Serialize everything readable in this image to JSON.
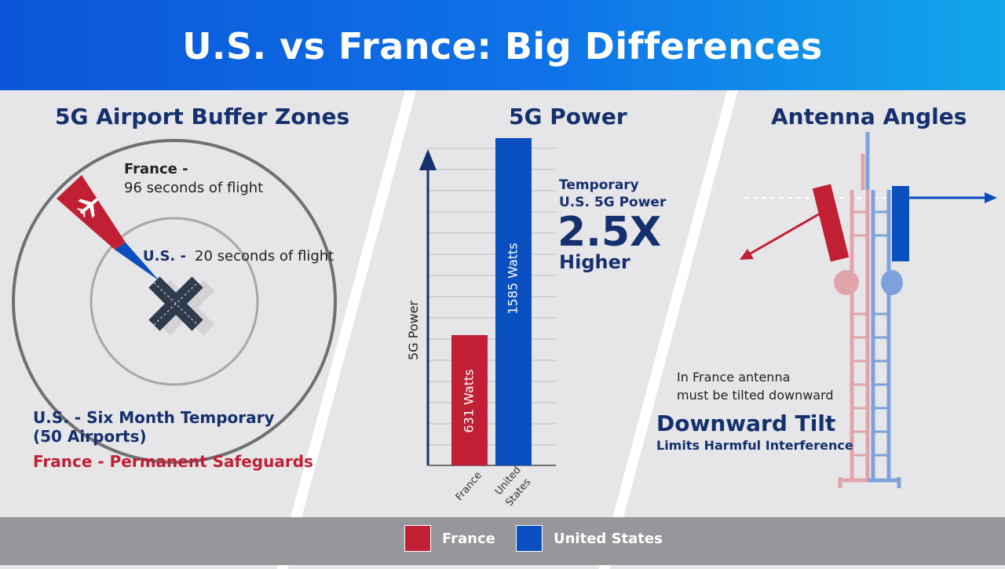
{
  "header": {
    "title": "U.S. vs France: Big Differences"
  },
  "colors": {
    "france": "#c11f33",
    "united_states": "#0a4fbf",
    "navy": "#15306e"
  },
  "buffer": {
    "title": "5G Airport Buffer Zones",
    "france_label": "France -",
    "france_sub": "96 seconds of flight",
    "us_label": "U.S. -",
    "us_sub": "20 seconds of flight",
    "us_policy_1": "U.S. - Six Month Temporary",
    "us_policy_2": "(50 Airports)",
    "france_policy": "France - Permanent Safeguards",
    "plane_icon": "airplane-icon",
    "runway_icon": "runway-icon"
  },
  "power": {
    "title": "5G Power",
    "callout_line1": "Temporary",
    "callout_line2": "U.S. 5G Power",
    "callout_big": "2.5X",
    "callout_line3": "Higher"
  },
  "chart_data": {
    "type": "bar",
    "title": "5G Power",
    "categories": [
      "France",
      "United States"
    ],
    "values": [
      631,
      1585
    ],
    "value_labels": [
      "631 Watts",
      "1585 Watts"
    ],
    "ylabel": "5G Power",
    "xlabel": "",
    "ylim": [
      0,
      1600
    ],
    "grid": true,
    "colors": [
      "#c11f33",
      "#0a4fbf"
    ]
  },
  "antenna": {
    "title": "Antenna Angles",
    "note_line1": "In France antenna",
    "note_line2": "must be tilted downward",
    "headline": "Downward Tilt",
    "subline": "Limits Harmful Interference",
    "tower_icon": "cell-tower-icon"
  },
  "legend": [
    {
      "label": "France",
      "color": "#c11f33"
    },
    {
      "label": "United States",
      "color": "#0a4fbf"
    }
  ]
}
